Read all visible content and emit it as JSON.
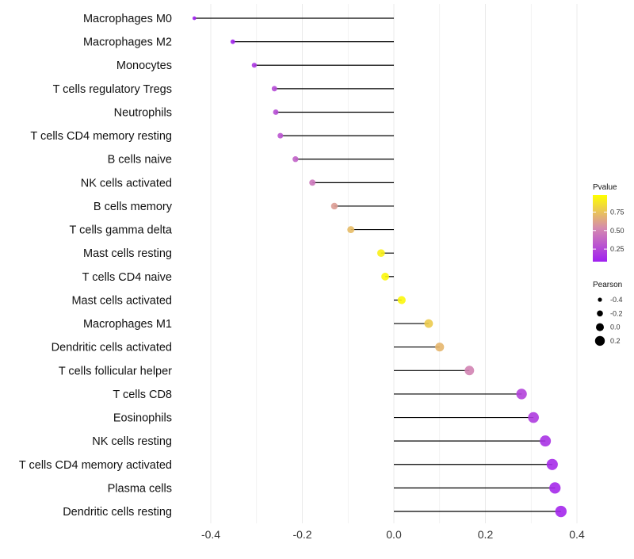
{
  "chart_data": {
    "type": "lollipop",
    "title": "",
    "xlabel": "",
    "ylabel": "",
    "xlim": [
      -0.46,
      0.5
    ],
    "x_ticks": [
      -0.4,
      -0.2,
      0.0,
      0.2,
      0.4
    ],
    "x_tick_labels": [
      "-0.4",
      "-0.2",
      "0.0",
      "0.2",
      "0.4"
    ],
    "grid": true,
    "categories": [
      "Macrophages M0",
      "Macrophages M2",
      "Monocytes",
      "T cells regulatory  Tregs",
      "Neutrophils",
      "T cells CD4 memory resting",
      "B cells naive",
      "NK cells activated",
      "B cells memory",
      "T cells gamma delta",
      "Mast cells resting",
      "T cells CD4 naive",
      "Mast cells activated",
      "Macrophages M1",
      "Dendritic cells activated",
      "T cells follicular helper",
      "T cells CD8",
      "Eosinophils",
      "NK cells resting",
      "T cells CD4 memory activated",
      "Plasma cells",
      "Dendritic cells resting"
    ],
    "pearson": [
      -0.436,
      -0.352,
      -0.305,
      -0.261,
      -0.258,
      -0.248,
      -0.215,
      -0.178,
      -0.13,
      -0.094,
      -0.028,
      -0.019,
      0.017,
      0.076,
      0.1,
      0.165,
      0.279,
      0.305,
      0.331,
      0.346,
      0.352,
      0.365
    ],
    "pvalue": [
      0.04,
      0.1,
      0.18,
      0.26,
      0.27,
      0.3,
      0.36,
      0.45,
      0.6,
      0.72,
      0.92,
      0.95,
      0.95,
      0.78,
      0.7,
      0.5,
      0.23,
      0.2,
      0.16,
      0.13,
      0.12,
      0.11
    ],
    "legend_color": {
      "title": "Pvalue",
      "ticks": [
        0.25,
        0.5,
        0.75
      ],
      "tick_labels": [
        "0.25",
        "0.50",
        "0.75"
      ],
      "range": [
        0.08,
        0.98
      ],
      "low": "#A020F0",
      "mid": "#D58AAF",
      "high": "#FFFF00"
    },
    "legend_size": {
      "title": "Pearson",
      "values": [
        -0.4,
        -0.2,
        0.0,
        0.2
      ],
      "labels": [
        "-0.4",
        "-0.2",
        "0.0",
        "0.2"
      ]
    },
    "legend_placement": "right"
  }
}
